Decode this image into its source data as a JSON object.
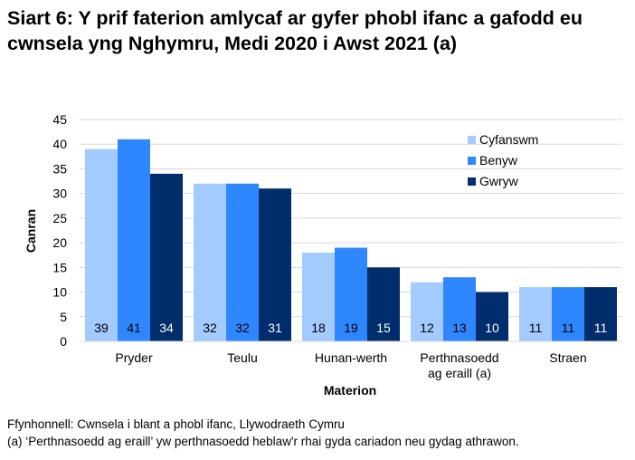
{
  "chart_data": {
    "type": "bar",
    "title": "Siart 6: Y prif faterion amlycaf ar gyfer phobl ifanc a gafodd eu cwnsela yng Nghymru, Medi 2020 i Awst 2021 (a)",
    "xlabel": "Materion",
    "ylabel": "Canran",
    "ylim": [
      0,
      45
    ],
    "yticks": [
      0,
      5,
      10,
      15,
      20,
      25,
      30,
      35,
      40,
      45
    ],
    "grid": true,
    "legend_position": "top-right",
    "categories": [
      "Pryder",
      "Teulu",
      "Hunan-werth",
      "Perthnasoedd|ag eraill (a)",
      "Straen"
    ],
    "series": [
      {
        "name": "Cyfanswm",
        "color": "#A3CBFF",
        "label_color": "#000000",
        "values": [
          39,
          32,
          18,
          12,
          11
        ]
      },
      {
        "name": "Benyw",
        "color": "#2F87FF",
        "label_color": "#000000",
        "values": [
          41,
          32,
          19,
          13,
          11
        ]
      },
      {
        "name": "Gwryw",
        "color": "#002D6B",
        "label_color": "#FFFFFF",
        "values": [
          34,
          31,
          15,
          10,
          11
        ]
      }
    ]
  },
  "notes": {
    "source": "Ffynhonnell: Cwnsela i blant a phobl ifanc, Llywodraeth Cymru",
    "footnote": "(a) ‘Perthnasoedd ag eraill’ yw perthnasoedd heblaw'r rhai gyda cariadon neu gydag athrawon."
  }
}
